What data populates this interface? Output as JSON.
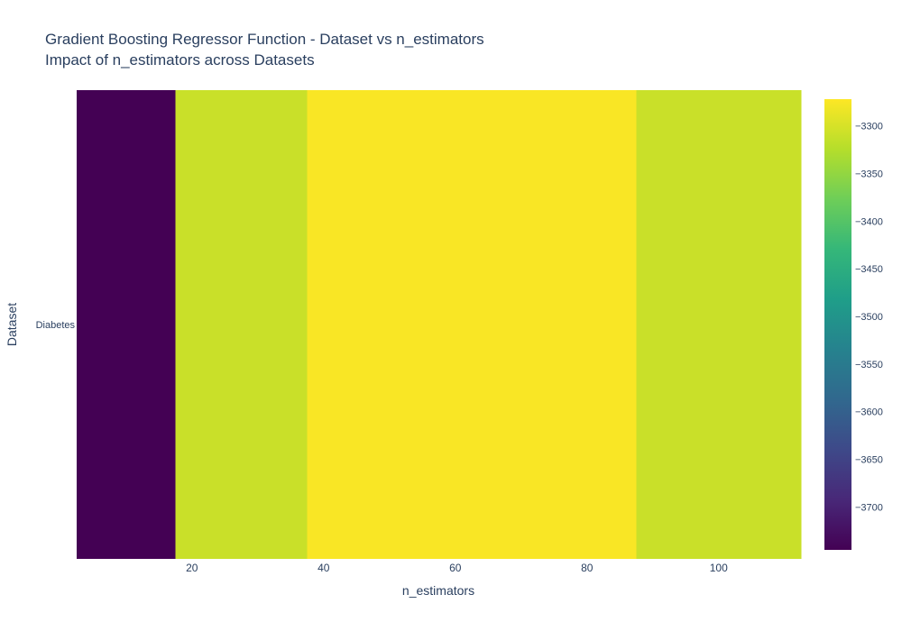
{
  "chart_data": {
    "type": "heatmap",
    "title": "Gradient Boosting Regressor Function - Dataset vs n_estimators",
    "subtitle": "Impact of n_estimators across Datasets",
    "xlabel": "n_estimators",
    "ylabel": "Dataset",
    "x": [
      10,
      25,
      50,
      75,
      100
    ],
    "y": [
      "Diabetes"
    ],
    "z": [
      [
        -3745,
        -3310,
        -3275,
        -3275,
        -3310
      ]
    ],
    "xlim": [
      2.5,
      112.5
    ],
    "x_ticks": [
      20,
      40,
      60,
      80,
      100
    ],
    "colorscale": "Viridis",
    "colorbar": {
      "range": [
        -3745,
        -3272
      ],
      "ticks": [
        -3300,
        -3350,
        -3400,
        -3450,
        -3500,
        -3550,
        -3600,
        -3650,
        -3700
      ],
      "tick_labels": [
        "−3300",
        "−3350",
        "−3400",
        "−3450",
        "−3500",
        "−3550",
        "−3600",
        "−3650",
        "−3700"
      ]
    }
  }
}
